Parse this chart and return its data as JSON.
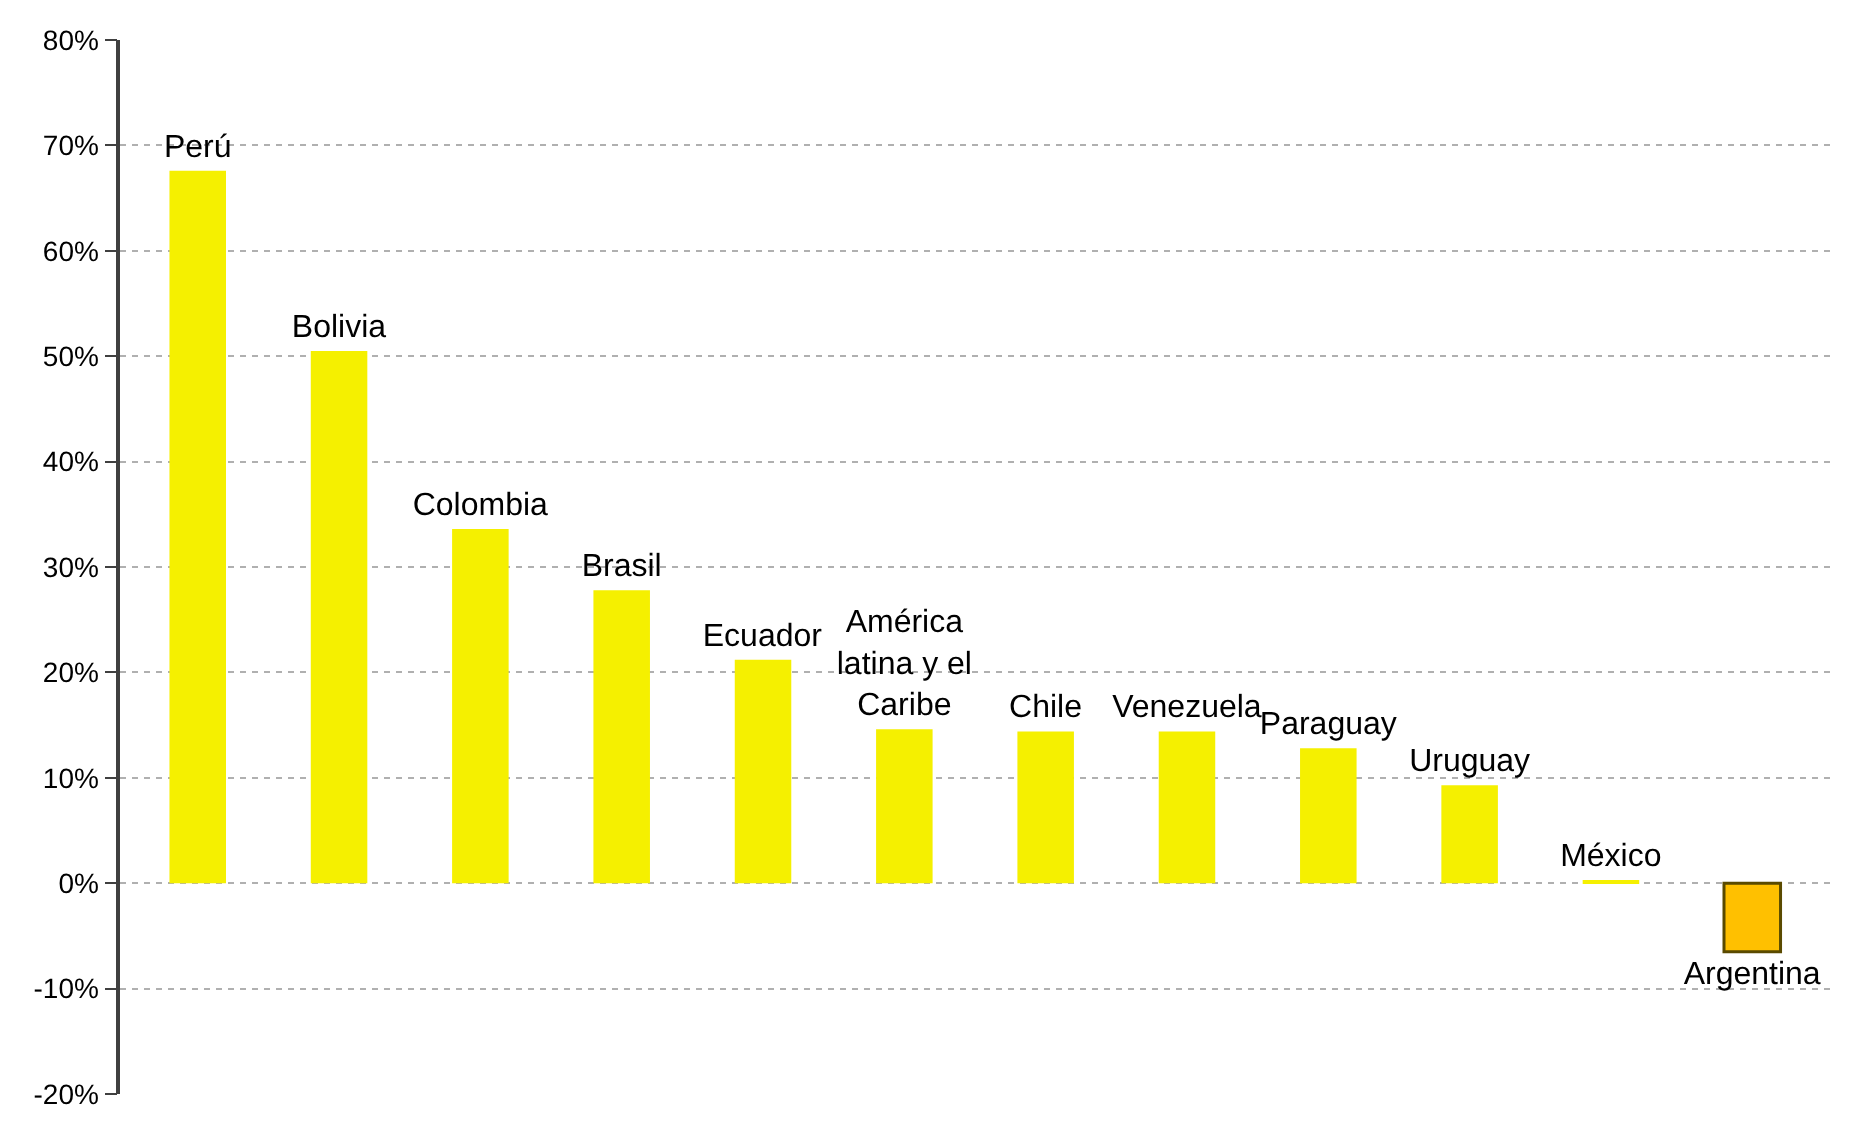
{
  "chart_data": {
    "type": "bar",
    "categories": [
      "Perú",
      "Bolivia",
      "Colombia",
      "Brasil",
      "Ecuador",
      "América latina y el Caribe",
      "Chile",
      "Venezuela",
      "Paraguay",
      "Uruguay",
      "México",
      "Argentina"
    ],
    "values": [
      67.6,
      50.5,
      33.6,
      27.8,
      21.2,
      14.6,
      14.4,
      14.4,
      12.8,
      9.3,
      0.3,
      -6.5
    ],
    "colors": [
      "#f5f000",
      "#f5f000",
      "#f5f000",
      "#f5f000",
      "#f5f000",
      "#f5f000",
      "#f5f000",
      "#f5f000",
      "#f5f000",
      "#f5f000",
      "#f5f000",
      "#ffc000"
    ],
    "ylim": [
      -20,
      80
    ],
    "yticks": [
      {
        "value": -20,
        "label": "-20%"
      },
      {
        "value": -10,
        "label": "-10%"
      },
      {
        "value": 0,
        "label": "0%"
      },
      {
        "value": 10,
        "label": "10%"
      },
      {
        "value": 20,
        "label": "20%"
      },
      {
        "value": 30,
        "label": "30%"
      },
      {
        "value": 40,
        "label": "40%"
      },
      {
        "value": 50,
        "label": "50%"
      },
      {
        "value": 60,
        "label": "60%"
      },
      {
        "value": 70,
        "label": "70%"
      },
      {
        "value": 80,
        "label": "80%"
      }
    ],
    "grid": "y",
    "tick_labels": "y"
  }
}
